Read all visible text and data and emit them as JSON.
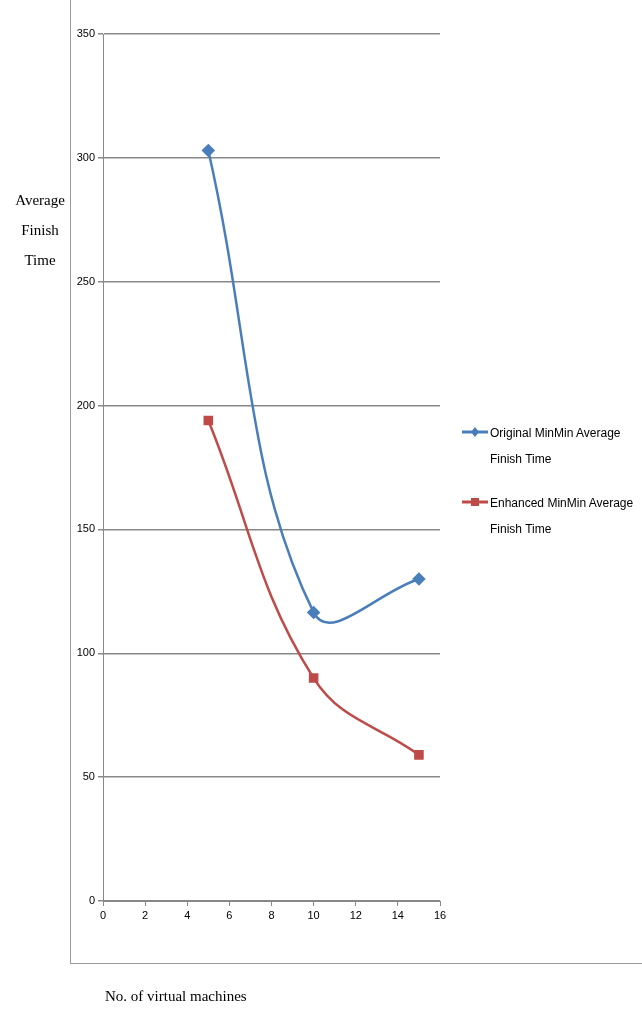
{
  "chart_data": {
    "type": "line",
    "xlabel": "No. of virtual machines",
    "ylabel": "Average Finish Time",
    "x": [
      5,
      10,
      15
    ],
    "series": [
      {
        "name": "Original MinMin Average Finish Time",
        "color": "#4a7ebb",
        "marker": "diamond",
        "values": [
          303,
          116.5,
          130
        ]
      },
      {
        "name": "Enhanced MinMin Average Finish Time",
        "color": "#be4b48",
        "marker": "square",
        "values": [
          194,
          90,
          59
        ]
      }
    ],
    "xlim": [
      0,
      16
    ],
    "xticks": [
      0,
      2,
      4,
      6,
      8,
      10,
      12,
      14,
      16
    ],
    "ylim": [
      0,
      350
    ],
    "yticks": [
      0,
      50,
      100,
      150,
      200,
      250,
      300,
      350
    ],
    "grid": "y",
    "legend": "right"
  }
}
